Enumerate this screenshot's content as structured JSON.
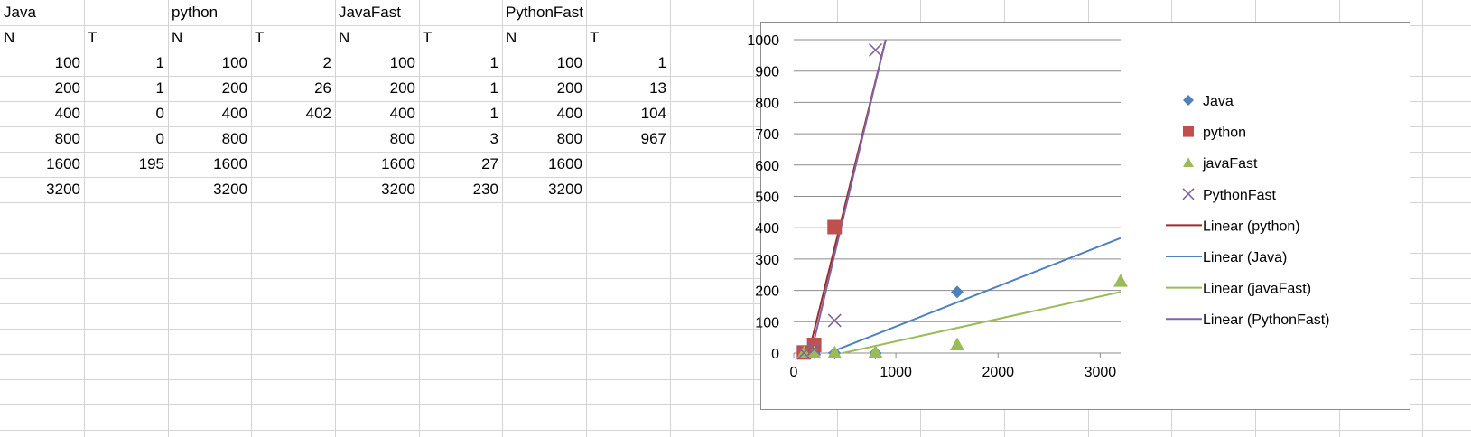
{
  "sheet": {
    "rows": [
      [
        "Java",
        "",
        "python",
        "",
        "JavaFast",
        "",
        "PythonFast",
        ""
      ],
      [
        "N",
        "T",
        "N",
        "T",
        "N",
        "T",
        "N",
        "T"
      ],
      [
        "100",
        "1",
        "100",
        "2",
        "100",
        "1",
        "100",
        "1"
      ],
      [
        "200",
        "1",
        "200",
        "26",
        "200",
        "1",
        "200",
        "13"
      ],
      [
        "400",
        "0",
        "400",
        "402",
        "400",
        "1",
        "400",
        "104"
      ],
      [
        "800",
        "0",
        "800",
        "",
        "800",
        "3",
        "800",
        "967"
      ],
      [
        "1600",
        "195",
        "1600",
        "",
        "1600",
        "27",
        "1600",
        ""
      ],
      [
        "3200",
        "",
        "3200",
        "",
        "3200",
        "230",
        "3200",
        ""
      ]
    ]
  },
  "chart_data": {
    "type": "scatter",
    "xlim": [
      0,
      3200
    ],
    "ylim": [
      0,
      1000
    ],
    "xticks": [
      0,
      1000,
      2000,
      3000
    ],
    "yticks": [
      0,
      100,
      200,
      300,
      400,
      500,
      600,
      700,
      800,
      900,
      1000
    ],
    "grid": "horizontal",
    "legend_position": "right",
    "series": [
      {
        "name": "Java",
        "marker": "diamond",
        "color": "#4f81bd",
        "x": [
          100,
          200,
          400,
          800,
          1600
        ],
        "y": [
          1,
          1,
          0,
          0,
          195
        ]
      },
      {
        "name": "python",
        "marker": "square",
        "color": "#c0504d",
        "x": [
          100,
          200,
          400
        ],
        "y": [
          2,
          26,
          402
        ]
      },
      {
        "name": "javaFast",
        "marker": "triangle",
        "color": "#9bbb59",
        "x": [
          100,
          200,
          400,
          800,
          1600,
          3200
        ],
        "y": [
          1,
          1,
          1,
          3,
          27,
          230
        ]
      },
      {
        "name": "PythonFast",
        "marker": "x",
        "color": "#8064a2",
        "x": [
          100,
          200,
          400,
          800
        ],
        "y": [
          1,
          13,
          104,
          967
        ]
      }
    ],
    "trendlines": [
      {
        "name": "Linear (python)",
        "color": "#9b2d2a",
        "x": [
          146,
          900
        ],
        "y": [
          0,
          1000
        ]
      },
      {
        "name": "Linear (Java)",
        "color": "#4f81bd",
        "x": [
          340,
          3200
        ],
        "y": [
          0,
          367
        ]
      },
      {
        "name": "Linear (javaFast)",
        "color": "#9bbb59",
        "x": [
          480,
          3200
        ],
        "y": [
          0,
          195
        ]
      },
      {
        "name": "Linear (PythonFast)",
        "color": "#8064a2",
        "x": [
          170,
          900
        ],
        "y": [
          0,
          1000
        ]
      }
    ]
  }
}
